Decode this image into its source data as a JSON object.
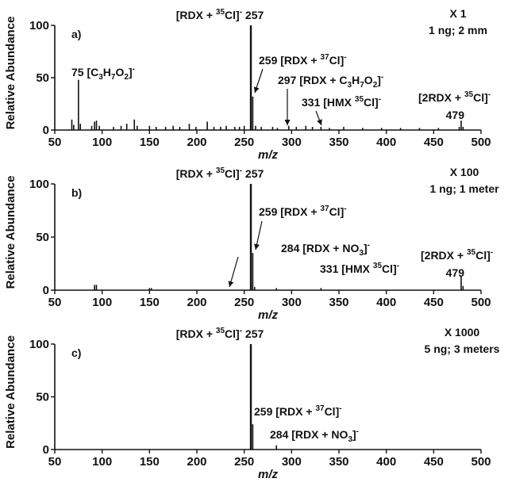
{
  "chart_data": [
    {
      "type": "line",
      "panel_label": "a)",
      "xlabel": "m/z",
      "ylabel": "Relative Abundance",
      "xlim": [
        50,
        500
      ],
      "ylim": [
        0,
        100
      ],
      "x_ticks": [
        "50",
        "100",
        "150",
        "200",
        "250",
        "300",
        "350",
        "400",
        "450",
        "500"
      ],
      "y_ticks": [
        "0",
        "50",
        "100"
      ],
      "notes": [
        "X 1",
        "1 ng; 2 mm"
      ],
      "peaks": [
        {
          "x": 68,
          "y": 10
        },
        {
          "x": 70,
          "y": 5
        },
        {
          "x": 75,
          "y": 48
        },
        {
          "x": 77,
          "y": 6
        },
        {
          "x": 89,
          "y": 4
        },
        {
          "x": 92,
          "y": 8
        },
        {
          "x": 94,
          "y": 9
        },
        {
          "x": 97,
          "y": 4
        },
        {
          "x": 112,
          "y": 3
        },
        {
          "x": 120,
          "y": 4
        },
        {
          "x": 126,
          "y": 6
        },
        {
          "x": 134,
          "y": 10
        },
        {
          "x": 137,
          "y": 4
        },
        {
          "x": 150,
          "y": 4
        },
        {
          "x": 157,
          "y": 3
        },
        {
          "x": 167,
          "y": 3
        },
        {
          "x": 175,
          "y": 4
        },
        {
          "x": 182,
          "y": 3
        },
        {
          "x": 192,
          "y": 6
        },
        {
          "x": 199,
          "y": 3
        },
        {
          "x": 211,
          "y": 8
        },
        {
          "x": 218,
          "y": 3
        },
        {
          "x": 225,
          "y": 3
        },
        {
          "x": 231,
          "y": 4
        },
        {
          "x": 240,
          "y": 3
        },
        {
          "x": 245,
          "y": 3
        },
        {
          "x": 250,
          "y": 4
        },
        {
          "x": 257,
          "y": 100
        },
        {
          "x": 259,
          "y": 32
        },
        {
          "x": 262,
          "y": 4
        },
        {
          "x": 268,
          "y": 3
        },
        {
          "x": 280,
          "y": 3
        },
        {
          "x": 285,
          "y": 2
        },
        {
          "x": 297,
          "y": 4
        },
        {
          "x": 305,
          "y": 3
        },
        {
          "x": 315,
          "y": 4
        },
        {
          "x": 322,
          "y": 3
        },
        {
          "x": 331,
          "y": 3
        },
        {
          "x": 340,
          "y": 2
        },
        {
          "x": 355,
          "y": 3
        },
        {
          "x": 375,
          "y": 2
        },
        {
          "x": 395,
          "y": 2
        },
        {
          "x": 415,
          "y": 2
        },
        {
          "x": 435,
          "y": 2
        },
        {
          "x": 455,
          "y": 2
        },
        {
          "x": 477,
          "y": 3
        },
        {
          "x": 479,
          "y": 9
        },
        {
          "x": 481,
          "y": 3
        }
      ],
      "annotations": [
        {
          "parts": [
            [
              "[RDX + ",
              "n"
            ],
            [
              "35",
              "sup"
            ],
            [
              "Cl]",
              "n"
            ],
            [
              "-",
              "sup"
            ],
            [
              " 257",
              "n"
            ]
          ]
        },
        {
          "parts": [
            [
              "75 [C",
              "n"
            ],
            [
              "3",
              "sub"
            ],
            [
              "H",
              "n"
            ],
            [
              "7",
              "sub"
            ],
            [
              "O",
              "n"
            ],
            [
              "2",
              "sub"
            ],
            [
              "]",
              "n"
            ],
            [
              "-",
              "sup"
            ]
          ]
        },
        {
          "parts": [
            [
              "259 [RDX + ",
              "n"
            ],
            [
              "37",
              "sup"
            ],
            [
              "Cl]",
              "n"
            ],
            [
              "-",
              "sup"
            ]
          ]
        },
        {
          "parts": [
            [
              "297 [RDX + C",
              "n"
            ],
            [
              "3",
              "sub"
            ],
            [
              "H",
              "n"
            ],
            [
              "7",
              "sub"
            ],
            [
              "O",
              "n"
            ],
            [
              "2",
              "sub"
            ],
            [
              "]",
              "n"
            ],
            [
              "-",
              "sup"
            ]
          ]
        },
        {
          "parts": [
            [
              "331 [HMX ",
              "n"
            ],
            [
              "35",
              "sup"
            ],
            [
              "Cl]",
              "n"
            ],
            [
              "-",
              "sup"
            ]
          ]
        },
        {
          "parts": [
            [
              "[2RDX + ",
              "n"
            ],
            [
              "35",
              "sup"
            ],
            [
              "Cl]",
              "n"
            ],
            [
              "-",
              "sup"
            ]
          ]
        },
        {
          "parts": [
            [
              "479",
              "n"
            ]
          ]
        }
      ]
    },
    {
      "type": "line",
      "panel_label": "b)",
      "xlabel": "m/z",
      "ylabel": "Relative Abundance",
      "xlim": [
        50,
        500
      ],
      "ylim": [
        0,
        100
      ],
      "x_ticks": [
        "50",
        "100",
        "150",
        "200",
        "250",
        "300",
        "350",
        "400",
        "450",
        "500"
      ],
      "y_ticks": [
        "0",
        "50",
        "100"
      ],
      "notes": [
        "X 100",
        "1 ng; 1 meter"
      ],
      "peaks": [
        {
          "x": 92,
          "y": 5
        },
        {
          "x": 94,
          "y": 5
        },
        {
          "x": 150,
          "y": 2
        },
        {
          "x": 152,
          "y": 2
        },
        {
          "x": 257,
          "y": 100
        },
        {
          "x": 259,
          "y": 35
        },
        {
          "x": 261,
          "y": 3
        },
        {
          "x": 284,
          "y": 2
        },
        {
          "x": 331,
          "y": 2
        },
        {
          "x": 479,
          "y": 13
        },
        {
          "x": 481,
          "y": 4
        }
      ],
      "annotations": [
        {
          "parts": [
            [
              "[RDX + ",
              "n"
            ],
            [
              "35",
              "sup"
            ],
            [
              "Cl]",
              "n"
            ],
            [
              "-",
              "sup"
            ],
            [
              " 257",
              "n"
            ]
          ]
        },
        {
          "parts": [
            [
              "259 [RDX + ",
              "n"
            ],
            [
              "37",
              "sup"
            ],
            [
              "Cl]",
              "n"
            ],
            [
              "-",
              "sup"
            ]
          ]
        },
        {
          "parts": [
            [
              "284 [RDX + NO",
              "n"
            ],
            [
              "3",
              "sub"
            ],
            [
              "]",
              "n"
            ],
            [
              "-",
              "sup"
            ]
          ]
        },
        {
          "parts": [
            [
              "331 [HMX ",
              "n"
            ],
            [
              "35",
              "sup"
            ],
            [
              "Cl]",
              "n"
            ],
            [
              "-",
              "sup"
            ]
          ]
        },
        {
          "parts": [
            [
              "[2RDX + ",
              "n"
            ],
            [
              "35",
              "sup"
            ],
            [
              "Cl]",
              "n"
            ],
            [
              "-",
              "sup"
            ]
          ]
        },
        {
          "parts": [
            [
              "479",
              "n"
            ]
          ]
        }
      ]
    },
    {
      "type": "line",
      "panel_label": "c)",
      "xlabel": "m/z",
      "ylabel": "Relative Abundance",
      "xlim": [
        50,
        500
      ],
      "ylim": [
        0,
        100
      ],
      "x_ticks": [
        "50",
        "100",
        "150",
        "200",
        "250",
        "300",
        "350",
        "400",
        "450",
        "500"
      ],
      "y_ticks": [
        "0",
        "50",
        "100"
      ],
      "notes": [
        "X 1000",
        "5 ng; 3 meters"
      ],
      "peaks": [
        {
          "x": 257,
          "y": 100
        },
        {
          "x": 259,
          "y": 24
        },
        {
          "x": 284,
          "y": 4
        }
      ],
      "annotations": [
        {
          "parts": [
            [
              "[RDX + ",
              "n"
            ],
            [
              "35",
              "sup"
            ],
            [
              "Cl]",
              "n"
            ],
            [
              "-",
              "sup"
            ],
            [
              " 257",
              "n"
            ]
          ]
        },
        {
          "parts": [
            [
              "259 [RDX + ",
              "n"
            ],
            [
              "37",
              "sup"
            ],
            [
              "Cl]",
              "n"
            ],
            [
              "-",
              "sup"
            ]
          ]
        },
        {
          "parts": [
            [
              "284 [RDX + NO",
              "n"
            ],
            [
              "3",
              "sub"
            ],
            [
              "]",
              "n"
            ],
            [
              "-",
              "sup"
            ]
          ]
        }
      ]
    }
  ]
}
